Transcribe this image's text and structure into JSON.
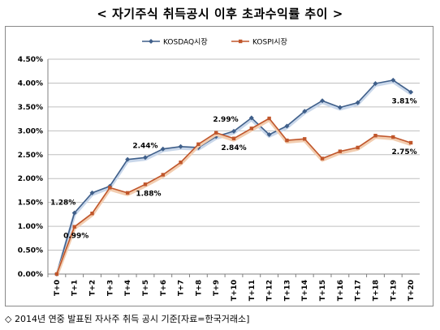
{
  "title": "< 자기주식 취득공시 이후 초과수익률 추이 >",
  "footnote": "◇ 2014년 연중 발표된 자사주 취득 공시 기준[자료=한국거래소]",
  "colors": {
    "kosdaq": "#3f5f8a",
    "kosdaq_fill": "#c9d7ea",
    "kospi": "#c0562b",
    "kospi_fill": "#f2cdb0",
    "grid": "#bfbfbf"
  },
  "chart_data": {
    "type": "line",
    "categories": [
      "T+0",
      "T+1",
      "T+2",
      "T+3",
      "T+4",
      "T+5",
      "T+6",
      "T+7",
      "T+8",
      "T+9",
      "T+10",
      "T+11",
      "T+12",
      "T+13",
      "T+14",
      "T+15",
      "T+16",
      "T+17",
      "T+18",
      "T+19",
      "T+20"
    ],
    "ylim": [
      0,
      4.5
    ],
    "ytick_labels": [
      "0.00%",
      "0.50%",
      "1.00%",
      "1.50%",
      "2.00%",
      "2.50%",
      "3.00%",
      "3.50%",
      "4.00%",
      "4.50%"
    ],
    "grid": true,
    "legend_position": "top",
    "series": [
      {
        "name": "KOSDAQ시장",
        "values": [
          0.0,
          1.28,
          1.7,
          1.84,
          2.4,
          2.44,
          2.62,
          2.67,
          2.65,
          2.88,
          2.99,
          3.27,
          2.92,
          3.1,
          3.41,
          3.63,
          3.49,
          3.59,
          3.99,
          4.06,
          3.81
        ]
      },
      {
        "name": "KOSPI시장",
        "values": [
          0.0,
          0.99,
          1.27,
          1.81,
          1.7,
          1.88,
          2.08,
          2.34,
          2.72,
          2.96,
          2.84,
          3.05,
          3.26,
          2.8,
          2.83,
          2.42,
          2.57,
          2.65,
          2.9,
          2.87,
          2.75
        ]
      }
    ],
    "data_labels": [
      {
        "series": 0,
        "index": 1,
        "text": "1.28%"
      },
      {
        "series": 0,
        "index": 5,
        "text": "2.44%"
      },
      {
        "series": 0,
        "index": 10,
        "text": "2.99%"
      },
      {
        "series": 0,
        "index": 20,
        "text": "3.81%"
      },
      {
        "series": 1,
        "index": 1,
        "text": "0.99%"
      },
      {
        "series": 1,
        "index": 5,
        "text": "1.88%"
      },
      {
        "series": 1,
        "index": 10,
        "text": "2.84%"
      },
      {
        "series": 1,
        "index": 20,
        "text": "2.75%"
      }
    ]
  }
}
